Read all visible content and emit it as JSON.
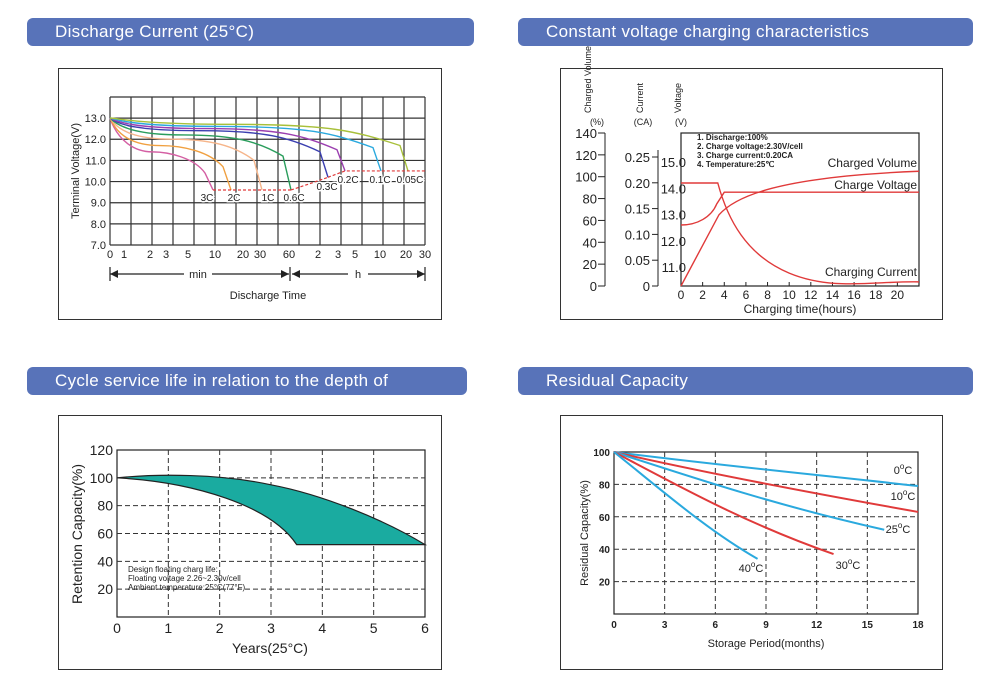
{
  "headers": {
    "discharge": "Discharge Current (25°C)",
    "charging": "Constant voltage charging characteristics",
    "cycle": "Cycle service life in relation to the depth of discharge",
    "residual": "Residual Capacity"
  },
  "colors": {
    "header_bg": "#5873b9",
    "red": "#e03a3a",
    "cyan": "#2aa9de",
    "teal": "#1aaba0"
  },
  "chart_data": [
    {
      "type": "line",
      "title": "Discharge Current (25°C)",
      "ylabel": "Terminal Voltage(V)",
      "xlabel": "Discharge Time",
      "ylim": [
        7.0,
        13.0
      ],
      "yticks": [
        "13.0",
        "12.0",
        "11.0",
        "10.0",
        "9.0",
        "8.0",
        "7.0"
      ],
      "xticks_min": [
        "0",
        "1",
        "2",
        "3",
        "5",
        "10",
        "20",
        "30",
        "60"
      ],
      "xticks_h": [
        "2",
        "3",
        "5",
        "10",
        "20",
        "30"
      ],
      "x_min_label": "min",
      "x_h_label": "h",
      "series": [
        {
          "name": "3C",
          "end_value": 9.6,
          "end_time": "8 min"
        },
        {
          "name": "2C",
          "end_value": 9.6,
          "end_time": "15 min"
        },
        {
          "name": "1C",
          "end_value": 9.6,
          "end_time": "40 min"
        },
        {
          "name": "0.6C",
          "end_value": 9.6,
          "end_time": "60 min"
        },
        {
          "name": "0.3C",
          "end_value": 10.2,
          "end_time": "3 h"
        },
        {
          "name": "0.2C",
          "end_value": 10.5,
          "end_time": "5 h"
        },
        {
          "name": "0.1C",
          "end_value": 10.5,
          "end_time": "10 h"
        },
        {
          "name": "0.05C",
          "end_value": 10.5,
          "end_time": "20 h"
        }
      ]
    },
    {
      "type": "line",
      "title": "Constant voltage charging characteristics",
      "xlabel": "Charging time(hours)",
      "xticks": [
        "0",
        "2",
        "4",
        "6",
        "8",
        "10",
        "12",
        "14",
        "16",
        "18",
        "20"
      ],
      "y_axes": [
        {
          "label": "Charged Volume",
          "unit": "(%)",
          "ticks": [
            "140",
            "120",
            "100",
            "80",
            "60",
            "40",
            "20",
            "0"
          ]
        },
        {
          "label": "Current",
          "unit": "(CA)",
          "ticks": [
            "0.25",
            "0.20",
            "0.15",
            "0.10",
            "0.05",
            "0"
          ]
        },
        {
          "label": "Voltage",
          "unit": "(V)",
          "ticks": [
            "15.0",
            "14.0",
            "13.0",
            "12.0",
            "11.0"
          ]
        }
      ],
      "notes": [
        "1. Discharge:100%",
        "2. Charge voltage:2.30V/cell",
        "3. Charge current:0.20CA",
        "4. Temperature:25℃"
      ],
      "series": [
        {
          "name": "Charged Volume",
          "x": [
            0,
            2,
            3.5,
            6,
            10,
            15,
            21
          ],
          "y": [
            0,
            35,
            65,
            88,
            98,
            102,
            104
          ]
        },
        {
          "name": "Charge Voltage",
          "x": [
            0,
            2,
            3.2,
            4,
            6,
            10,
            21
          ],
          "y": [
            12.6,
            12.8,
            13.3,
            13.8,
            13.85,
            13.85,
            13.85
          ]
        },
        {
          "name": "Charging Current",
          "x": [
            0,
            3.3,
            4,
            6,
            10,
            15,
            21
          ],
          "y": [
            0.2,
            0.2,
            0.15,
            0.08,
            0.03,
            0.015,
            0.01
          ]
        }
      ]
    },
    {
      "type": "area",
      "title": "Cycle service life in relation to the depth of discharge",
      "xlabel": "Years(25°C)",
      "ylabel": "Retention Capacity(%)",
      "xlim": [
        0,
        6
      ],
      "ylim": [
        0,
        120
      ],
      "xticks": [
        "0",
        "1",
        "2",
        "3",
        "4",
        "5",
        "6"
      ],
      "yticks": [
        "120",
        "100",
        "80",
        "60",
        "40",
        "20"
      ],
      "upper": {
        "x": [
          0,
          1,
          2,
          3,
          4,
          5,
          6
        ],
        "y": [
          100,
          102,
          100,
          95,
          85,
          70,
          52
        ]
      },
      "lower": {
        "x": [
          0,
          1,
          2,
          3,
          3.5
        ],
        "y": [
          100,
          99,
          93,
          80,
          52
        ]
      },
      "annotation": [
        "Design floating charg life:",
        "Floating voltage 2.26~2.30v/cell",
        "Ambient temperature:25°C(77°F)"
      ]
    },
    {
      "type": "line",
      "title": "Residual Capacity",
      "xlabel": "Storage Period(months)",
      "ylabel": "Residual Capacity(%)",
      "xlim": [
        0,
        18
      ],
      "ylim": [
        0,
        100
      ],
      "xticks": [
        "0",
        "3",
        "6",
        "9",
        "12",
        "15",
        "18"
      ],
      "yticks": [
        "100",
        "80",
        "60",
        "40",
        "20"
      ],
      "series": [
        {
          "name": "0°C",
          "color": "cyan",
          "x": [
            0,
            18
          ],
          "y": [
            100,
            79
          ]
        },
        {
          "name": "10°C",
          "color": "red",
          "x": [
            0,
            18
          ],
          "y": [
            100,
            63
          ]
        },
        {
          "name": "25°C",
          "color": "cyan",
          "x": [
            0,
            16
          ],
          "y": [
            100,
            52
          ]
        },
        {
          "name": "30°C",
          "color": "red",
          "x": [
            0,
            13
          ],
          "y": [
            100,
            37
          ]
        },
        {
          "name": "40°C",
          "color": "cyan",
          "x": [
            0,
            8.5
          ],
          "y": [
            100,
            34
          ]
        }
      ],
      "labels": [
        {
          "text": "0",
          "sup": "o",
          "unit": "C"
        },
        {
          "text": "10",
          "sup": "o",
          "unit": "C"
        },
        {
          "text": "25",
          "sup": "o",
          "unit": "C"
        },
        {
          "text": "30",
          "sup": "o",
          "unit": "C"
        },
        {
          "text": "40",
          "sup": "o",
          "unit": "C"
        }
      ]
    }
  ]
}
